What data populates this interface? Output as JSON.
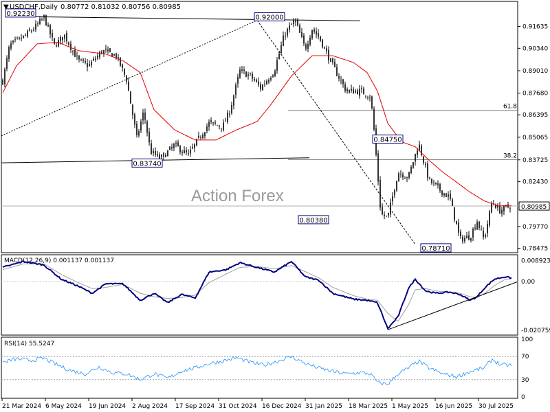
{
  "header": {
    "symbol": "USDCHF,Daily",
    "ohlc": "0.80772 0.81032 0.80756 0.80985"
  },
  "watermark": "Action Forex",
  "colors": {
    "candles": "#000000",
    "ma": "#e00000",
    "macd": "#000080",
    "signal": "#a0a0a0",
    "rsi": "#1e90ff",
    "grid_level": "#808080"
  },
  "chart_data": [
    {
      "type": "candlestick",
      "title": "USDCHF,Daily",
      "ohlc_last": {
        "open": 0.80772,
        "high": 0.81032,
        "low": 0.80756,
        "close": 0.80985
      },
      "x_tick_labels": [
        "21 Mar 2024",
        "6 May 2024",
        "19 Jun 2024",
        "2 Aug 2024",
        "17 Sep 2024",
        "31 Oct 2024",
        "16 Dec 2024",
        "31 Jan 2025",
        "18 Mar 2025",
        "1 May 2025",
        "16 Jun 2025",
        "30 Jul 2025"
      ],
      "y_tick_labels": [
        "0.91635",
        "0.90340",
        "0.89010",
        "0.87680",
        "0.86395",
        "0.85065",
        "0.83725",
        "0.82430",
        "0.79770",
        "0.78475"
      ],
      "ylim": [
        0.783,
        0.93
      ],
      "current_price": "0.80985",
      "key_points": [
        {
          "date_index": 5,
          "price": 0.9223,
          "label": "0.92230"
        },
        {
          "date_index": 370,
          "price": 0.92,
          "label": "0.92000"
        },
        {
          "date_index": 190,
          "price": 0.8374,
          "label": "0.83740"
        },
        {
          "date_index": 480,
          "price": 0.8038,
          "label": "0.80380"
        },
        {
          "date_index": 510,
          "price": 0.8475,
          "label": "0.84750"
        },
        {
          "date_index": 600,
          "price": 0.7871,
          "label": "0.78710"
        }
      ],
      "fib_levels": [
        {
          "label": "61.8",
          "price": 0.8666
        },
        {
          "label": "38.2",
          "price": 0.8374
        }
      ],
      "series": [
        {
          "kind": "price",
          "anchors": [
            [
              0,
              0.884
            ],
            [
              10,
              0.905
            ],
            [
              30,
              0.91
            ],
            [
              50,
              0.917
            ],
            [
              60,
              0.922
            ],
            [
              75,
              0.905
            ],
            [
              90,
              0.911
            ],
            [
              110,
              0.896
            ],
            [
              125,
              0.893
            ],
            [
              145,
              0.902
            ],
            [
              165,
              0.899
            ],
            [
              180,
              0.885
            ],
            [
              195,
              0.85
            ],
            [
              205,
              0.866
            ],
            [
              215,
              0.842
            ],
            [
              230,
              0.838
            ],
            [
              250,
              0.846
            ],
            [
              270,
              0.84
            ],
            [
              290,
              0.853
            ],
            [
              300,
              0.859
            ],
            [
              320,
              0.857
            ],
            [
              330,
              0.866
            ],
            [
              345,
              0.89
            ],
            [
              360,
              0.887
            ],
            [
              375,
              0.88
            ],
            [
              395,
              0.89
            ],
            [
              410,
              0.912
            ],
            [
              425,
              0.92
            ],
            [
              440,
              0.903
            ],
            [
              450,
              0.915
            ],
            [
              460,
              0.91
            ],
            [
              480,
              0.893
            ],
            [
              500,
              0.878
            ],
            [
              520,
              0.878
            ],
            [
              535,
              0.875
            ],
            [
              540,
              0.855
            ],
            [
              550,
              0.805
            ],
            [
              560,
              0.803
            ],
            [
              575,
              0.83
            ],
            [
              590,
              0.827
            ],
            [
              605,
              0.847
            ],
            [
              620,
              0.825
            ],
            [
              640,
              0.818
            ],
            [
              650,
              0.815
            ],
            [
              665,
              0.79
            ],
            [
              680,
              0.792
            ],
            [
              690,
              0.801
            ],
            [
              700,
              0.79
            ],
            [
              712,
              0.813
            ],
            [
              722,
              0.807
            ],
            [
              738,
              0.81
            ]
          ]
        },
        {
          "kind": "moving_average",
          "anchors": [
            [
              0,
              0.877
            ],
            [
              20,
              0.893
            ],
            [
              50,
              0.906
            ],
            [
              80,
              0.907
            ],
            [
              110,
              0.902
            ],
            [
              150,
              0.9
            ],
            [
              175,
              0.896
            ],
            [
              200,
              0.889
            ],
            [
              220,
              0.867
            ],
            [
              250,
              0.855
            ],
            [
              280,
              0.849
            ],
            [
              310,
              0.849
            ],
            [
              340,
              0.855
            ],
            [
              370,
              0.86
            ],
            [
              390,
              0.87
            ],
            [
              420,
              0.887
            ],
            [
              450,
              0.899
            ],
            [
              480,
              0.899
            ],
            [
              510,
              0.895
            ],
            [
              530,
              0.889
            ],
            [
              545,
              0.878
            ],
            [
              560,
              0.859
            ],
            [
              580,
              0.848
            ],
            [
              600,
              0.845
            ],
            [
              620,
              0.837
            ],
            [
              640,
              0.83
            ],
            [
              660,
              0.824
            ],
            [
              680,
              0.818
            ],
            [
              700,
              0.813
            ],
            [
              720,
              0.81
            ],
            [
              740,
              0.81
            ]
          ]
        }
      ]
    },
    {
      "type": "line",
      "title": "MACD(12,26,9) 0.001137 0.001137",
      "ylim": [
        -0.0222,
        0.0105
      ],
      "y_tick_labels": [
        "0.008923",
        "0.00",
        "-0.020759"
      ],
      "series": [
        {
          "kind": "macd",
          "anchors": [
            [
              0,
              0.006
            ],
            [
              30,
              0.0085
            ],
            [
              60,
              0.007
            ],
            [
              85,
              0.001
            ],
            [
              110,
              -0.002
            ],
            [
              130,
              -0.005
            ],
            [
              150,
              -0.001
            ],
            [
              175,
              -0.001
            ],
            [
              200,
              -0.008
            ],
            [
              220,
              -0.005
            ],
            [
              240,
              -0.009
            ],
            [
              260,
              -0.0055
            ],
            [
              280,
              -0.007
            ],
            [
              300,
              0.004
            ],
            [
              325,
              0.005
            ],
            [
              345,
              0.008
            ],
            [
              370,
              0.006
            ],
            [
              395,
              0.004
            ],
            [
              420,
              0.0085
            ],
            [
              440,
              0.002
            ],
            [
              460,
              0.0005
            ],
            [
              480,
              -0.005
            ],
            [
              510,
              -0.0075
            ],
            [
              530,
              -0.008
            ],
            [
              545,
              -0.009
            ],
            [
              560,
              -0.02
            ],
            [
              575,
              -0.015
            ],
            [
              590,
              -0.003
            ],
            [
              600,
              0.001
            ],
            [
              615,
              -0.004
            ],
            [
              630,
              -0.005
            ],
            [
              650,
              -0.0045
            ],
            [
              665,
              -0.0055
            ],
            [
              680,
              -0.008
            ],
            [
              690,
              -0.0065
            ],
            [
              700,
              -0.003
            ],
            [
              715,
              0.001
            ],
            [
              730,
              0.002
            ],
            [
              740,
              0.0015
            ]
          ]
        },
        {
          "kind": "signal",
          "anchors": [
            [
              0,
              0.005
            ],
            [
              30,
              0.0075
            ],
            [
              60,
              0.0075
            ],
            [
              85,
              0.003
            ],
            [
              110,
              -0.0005
            ],
            [
              130,
              -0.003
            ],
            [
              150,
              -0.0025
            ],
            [
              175,
              -0.0012
            ],
            [
              200,
              -0.005
            ],
            [
              220,
              -0.0065
            ],
            [
              240,
              -0.0072
            ],
            [
              260,
              -0.0068
            ],
            [
              280,
              -0.0058
            ],
            [
              300,
              -0.0005
            ],
            [
              325,
              0.0032
            ],
            [
              345,
              0.006
            ],
            [
              370,
              0.0064
            ],
            [
              395,
              0.0054
            ],
            [
              420,
              0.0068
            ],
            [
              440,
              0.0042
            ],
            [
              460,
              0.0015
            ],
            [
              480,
              -0.0025
            ],
            [
              510,
              -0.006
            ],
            [
              530,
              -0.0075
            ],
            [
              545,
              -0.008
            ],
            [
              560,
              -0.0135
            ],
            [
              575,
              -0.017
            ],
            [
              590,
              -0.01
            ],
            [
              600,
              -0.0035
            ],
            [
              615,
              -0.003
            ],
            [
              630,
              -0.004
            ],
            [
              650,
              -0.0045
            ],
            [
              665,
              -0.005
            ],
            [
              680,
              -0.0065
            ],
            [
              690,
              -0.0068
            ],
            [
              700,
              -0.0052
            ],
            [
              715,
              -0.0018
            ],
            [
              730,
              0.0008
            ],
            [
              740,
              0.0012
            ]
          ]
        }
      ]
    },
    {
      "type": "line",
      "title": "RSI(14) 55.5247",
      "ylim": [
        0,
        100
      ],
      "y_tick_labels": [
        "100",
        "70",
        "30",
        "0"
      ],
      "levels": [
        70,
        30
      ],
      "series": [
        {
          "kind": "rsi",
          "anchors": [
            [
              0,
              60
            ],
            [
              20,
              66
            ],
            [
              40,
              63
            ],
            [
              60,
              67
            ],
            [
              80,
              55
            ],
            [
              100,
              45
            ],
            [
              120,
              40
            ],
            [
              140,
              52
            ],
            [
              160,
              42
            ],
            [
              180,
              40
            ],
            [
              200,
              30
            ],
            [
              210,
              35
            ],
            [
              220,
              40
            ],
            [
              240,
              32
            ],
            [
              260,
              45
            ],
            [
              280,
              50
            ],
            [
              300,
              58
            ],
            [
              320,
              62
            ],
            [
              340,
              68
            ],
            [
              360,
              60
            ],
            [
              380,
              55
            ],
            [
              400,
              62
            ],
            [
              420,
              70
            ],
            [
              440,
              58
            ],
            [
              460,
              50
            ],
            [
              480,
              44
            ],
            [
              500,
              40
            ],
            [
              520,
              42
            ],
            [
              535,
              40
            ],
            [
              545,
              25
            ],
            [
              560,
              22
            ],
            [
              575,
              40
            ],
            [
              590,
              50
            ],
            [
              605,
              62
            ],
            [
              620,
              50
            ],
            [
              640,
              40
            ],
            [
              660,
              35
            ],
            [
              680,
              44
            ],
            [
              700,
              50
            ],
            [
              712,
              65
            ],
            [
              725,
              55
            ],
            [
              740,
              55
            ]
          ]
        }
      ]
    }
  ]
}
